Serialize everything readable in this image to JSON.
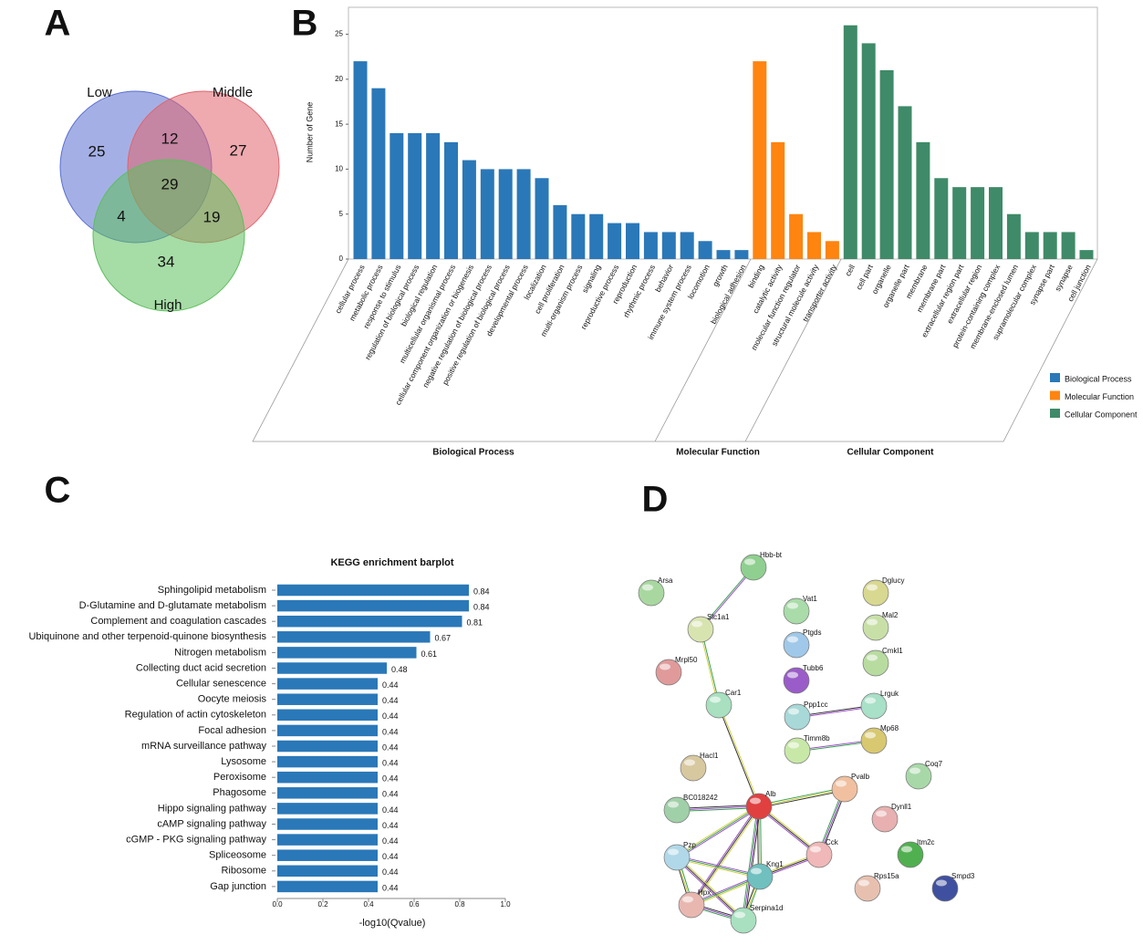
{
  "panels": [
    "A",
    "B",
    "C",
    "D"
  ],
  "chart_data": [
    {
      "type": "venn",
      "sets": [
        {
          "name": "Low",
          "color": "#5a6fd0"
        },
        {
          "name": "Middle",
          "color": "#e0646e"
        },
        {
          "name": "High",
          "color": "#5cbf5c"
        }
      ],
      "values": [
        25,
        12,
        27,
        29,
        4,
        19,
        34
      ]
    },
    {
      "type": "bar",
      "ylabel": "Number of Gene",
      "ylim": [
        0,
        28
      ],
      "yticks": [
        0,
        5,
        10,
        15,
        20,
        25
      ],
      "categories": [
        "cellular process",
        "metabolic process",
        "response to stimulus",
        "regulation of biological process",
        "biological regulation",
        "multicellular organismal process",
        "cellular component organization or biogenesis",
        "negative regulation of biological process",
        "positive regulation of biological process",
        "developmental process",
        "localization",
        "cell proliferation",
        "multi-organism process",
        "signaling",
        "reproductive process",
        "reproduction",
        "rhythmic process",
        "behavior",
        "immune system process",
        "locomotion",
        "growth",
        "biological adhesion",
        "binding",
        "catalytic activity",
        "molecular function regulator",
        "structural molecule activity",
        "transporter activity",
        "cell",
        "cell part",
        "organelle",
        "organelle part",
        "membrane",
        "membrane part",
        "extracellular region part",
        "extracellular region",
        "protein-containing complex",
        "membrane-enclosed lumen",
        "supramolecular complex",
        "synapse part",
        "synapse",
        "cell junction"
      ],
      "series": [
        {
          "name": "Biological Process",
          "color": "#2a78b8",
          "values": [
            22,
            19,
            14,
            14,
            14,
            13,
            11,
            10,
            10,
            10,
            9,
            6,
            5,
            5,
            4,
            4,
            3,
            3,
            3,
            2,
            1,
            1,
            null,
            null,
            null,
            null,
            null,
            null,
            null,
            null,
            null,
            null,
            null,
            null,
            null,
            null,
            null,
            null,
            null,
            null,
            null
          ]
        },
        {
          "name": "Molecular Function",
          "color": "#ff8410",
          "values": [
            null,
            null,
            null,
            null,
            null,
            null,
            null,
            null,
            null,
            null,
            null,
            null,
            null,
            null,
            null,
            null,
            null,
            null,
            null,
            null,
            null,
            null,
            22,
            13,
            5,
            3,
            2,
            null,
            null,
            null,
            null,
            null,
            null,
            null,
            null,
            null,
            null,
            null,
            null,
            null,
            null
          ]
        },
        {
          "name": "Cellular Component",
          "color": "#3f8a68",
          "values": [
            null,
            null,
            null,
            null,
            null,
            null,
            null,
            null,
            null,
            null,
            null,
            null,
            null,
            null,
            null,
            null,
            null,
            null,
            null,
            null,
            null,
            null,
            null,
            null,
            null,
            null,
            null,
            26,
            24,
            21,
            17,
            13,
            9,
            8,
            8,
            8,
            5,
            3,
            3,
            3,
            1
          ]
        }
      ]
    },
    {
      "type": "barh",
      "title": "KEGG enrichment barplot",
      "xlabel": "-log10(Qvalue)",
      "xlim": [
        0,
        1
      ],
      "xticks": [
        {
          "value": 0,
          "label": "0.0"
        },
        0.2,
        0.4,
        0.6,
        0.8,
        {
          "value": 1,
          "label": "1.0"
        }
      ],
      "color": "#2a78b8",
      "categories": [
        "Sphingolipid metabolism",
        "D-Glutamine and D-glutamate metabolism",
        "Complement and coagulation cascades",
        "Ubiquinone and other terpenoid-quinone biosynthesis",
        "Nitrogen metabolism",
        "Collecting duct acid secretion",
        "Cellular senescence",
        "Oocyte meiosis",
        "Regulation of actin cytoskeleton",
        "Focal adhesion",
        "mRNA surveillance pathway",
        "Lysosome",
        "Peroxisome",
        "Phagosome",
        "Hippo signaling pathway",
        "cAMP signaling pathway",
        "cGMP - PKG signaling pathway",
        "Spliceosome",
        "Ribosome",
        "Gap junction"
      ],
      "values": [
        0.84,
        0.84,
        0.81,
        0.67,
        0.61,
        0.48,
        0.44,
        0.44,
        0.44,
        0.44,
        0.44,
        0.44,
        0.44,
        0.44,
        0.44,
        0.44,
        0.44,
        0.44,
        0.44,
        0.44
      ]
    }
  ],
  "network": {
    "nodes": [
      {
        "label": "Hbb-bt"
      },
      {
        "label": "Arsa"
      },
      {
        "label": "Vat1"
      },
      {
        "label": "Dglucy"
      },
      {
        "label": "Slc1a1"
      },
      {
        "label": "Ptgds"
      },
      {
        "label": "Mal2"
      },
      {
        "label": "Mrpl50"
      },
      {
        "label": "Tubb6"
      },
      {
        "label": "Cmkl1"
      },
      {
        "label": "Car1"
      },
      {
        "label": "Ppp1cc"
      },
      {
        "label": "Lrguk"
      },
      {
        "label": "Timm8b"
      },
      {
        "label": "Mp68"
      },
      {
        "label": "Hacl1"
      },
      {
        "label": "Coq7"
      },
      {
        "label": "Pvalb"
      },
      {
        "label": "BC018242"
      },
      {
        "label": "Alb"
      },
      {
        "label": "Dynll1"
      },
      {
        "label": "Pzp"
      },
      {
        "label": "Cck"
      },
      {
        "label": "Itm2c"
      },
      {
        "label": "Kng1"
      },
      {
        "label": "Rps15a"
      },
      {
        "label": "Smpd3"
      },
      {
        "label": "Hpx"
      },
      {
        "label": "Serpina1d"
      }
    ]
  }
}
